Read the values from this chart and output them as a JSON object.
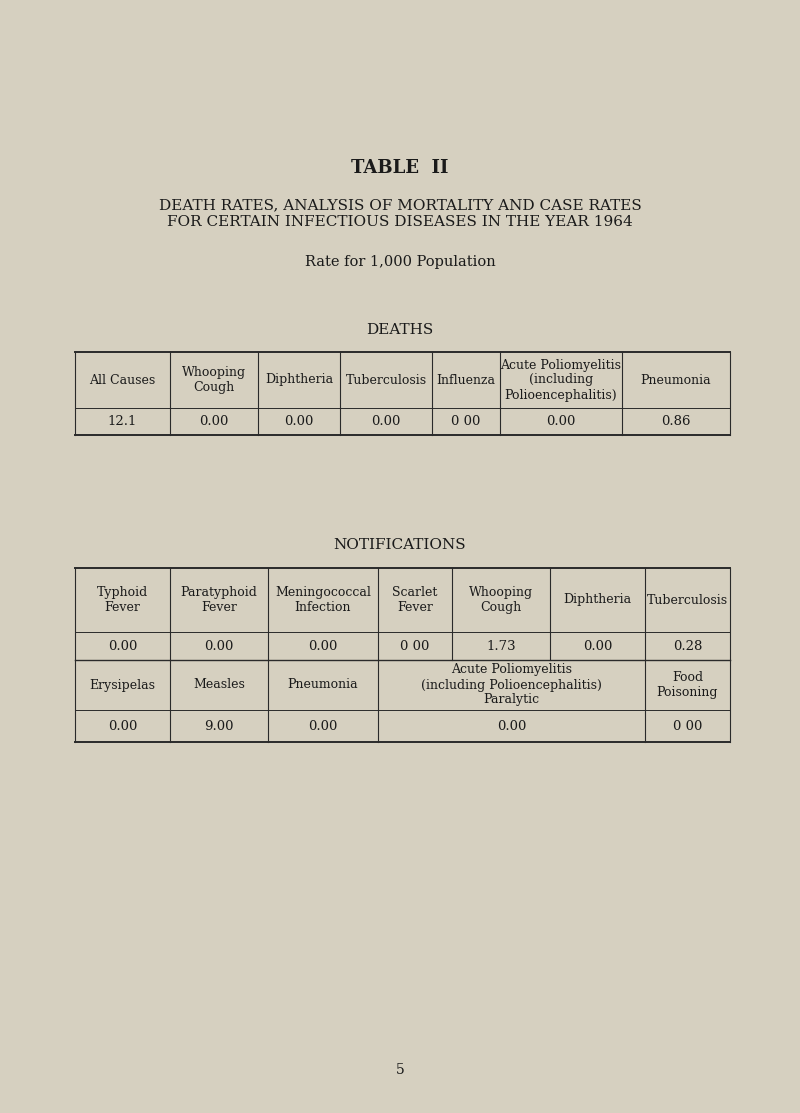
{
  "bg_color": "#d6d0c0",
  "paper_color": "#e8e4d8",
  "title1": "TABLE  II",
  "title2": "DEATH RATES, ANALYSIS OF MORTALITY AND CASE RATES",
  "title3": "FOR CERTAIN INFECTIOUS DISEASES IN THE YEAR 1964",
  "subtitle": "Rate for 1,000 Population",
  "deaths_title": "DEATHS",
  "deaths_headers": [
    "All Causes",
    "Whooping\nCough",
    "Diphtheria",
    "Tuberculosis",
    "Influenza",
    "Acute Poliomyelitis\n(including\nPolioencephalitis)",
    "Pneumonia"
  ],
  "deaths_values": [
    "12.1",
    "0.00",
    "0.00",
    "0.00",
    "0 00",
    "0.00",
    "0.86"
  ],
  "notifications_title": "NOTIFICATIONS",
  "notif_row1_headers": [
    "Typhoid\nFever",
    "Paratyphoid\nFever",
    "Meningococcal\nInfection",
    "Scarlet\nFever",
    "Whooping\nCough",
    "Diphtheria",
    "Tuberculosis"
  ],
  "notif_row1_values": [
    "0.00",
    "0.00",
    "0.00",
    "0 00",
    "1.73",
    "0.00",
    "0.28"
  ],
  "notif_row2_headers": [
    "Erysipelas",
    "Measles",
    "Pneumonia",
    "Acute Poliomyelitis\n(including Polioencephalitis)\nParalytic",
    "Food\nPoisoning"
  ],
  "notif_row2_values": [
    "0.00",
    "9.00",
    "0.00",
    "0.00",
    "0 00"
  ],
  "page_number": "5",
  "line_color": "#2a2a2a",
  "text_color": "#1a1a1a"
}
